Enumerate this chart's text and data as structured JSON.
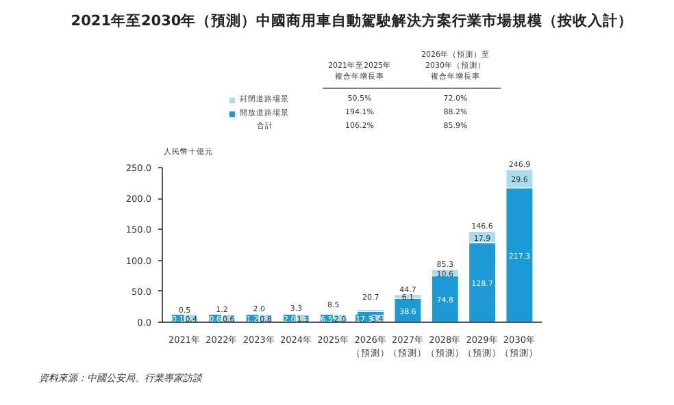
{
  "chart_data": {
    "type": "bar",
    "stacked": true,
    "title": "2021年至2030年（預測）中國商用車自動駕駛解決方案行業市場規模（按收入計）",
    "ylabel": "人民幣十億元",
    "categories": [
      "2021年",
      "2022年",
      "2023年",
      "2024年",
      "2025年",
      "2026年（預測）",
      "2027年（預測）",
      "2028年（預測）",
      "2029年（預測）",
      "2030年（預測）"
    ],
    "series": [
      {
        "name": "開放道路場景",
        "color": "#1b9ad6",
        "values": [
          0.1,
          0.6,
          1.2,
          2.0,
          6.5,
          17.3,
          38.6,
          74.8,
          128.7,
          217.3
        ],
        "value_labels": [
          "0.1",
          "0.6",
          "1.2",
          "2.0",
          "6.5",
          "17.3",
          "38.6",
          "74.8",
          "128.7",
          "217.3"
        ]
      },
      {
        "name": "封閉道路場景",
        "color": "#a9dcef",
        "values": [
          0.4,
          0.6,
          0.8,
          1.3,
          2.0,
          3.4,
          6.1,
          10.6,
          17.9,
          29.6
        ],
        "value_labels": [
          "0.4",
          "0.6",
          "0.8",
          "1.3",
          "2.0",
          "3.4",
          "6.1",
          "10.6",
          "17.9",
          "29.6"
        ]
      }
    ],
    "totals": [
      "0.5",
      "1.2",
      "2.0",
      "3.3",
      "8.5",
      "20.7",
      "44.7",
      "85.3",
      "146.6",
      "246.9"
    ],
    "ylim": [
      0,
      250
    ],
    "yticks": [
      {
        "value": 0,
        "label": "0.0"
      },
      {
        "value": 50,
        "label": "50.0"
      },
      {
        "value": 100,
        "label": "100.0"
      },
      {
        "value": 150,
        "label": "150.0"
      },
      {
        "value": 200,
        "label": "200.0"
      },
      {
        "value": 250,
        "label": "250.0"
      }
    ],
    "grid": false,
    "legend": "top",
    "annotations": [
      "2021年至2025年",
      "複合年增長率",
      "2026年（預測）至",
      "2030年（預測）",
      "複合年增長率",
      "50.5%",
      "72.0%",
      "194.1%",
      "88.2%",
      "合計",
      "106.2%",
      "85.9%",
      "資料來源：中國公安局、行業專家訪談"
    ]
  }
}
